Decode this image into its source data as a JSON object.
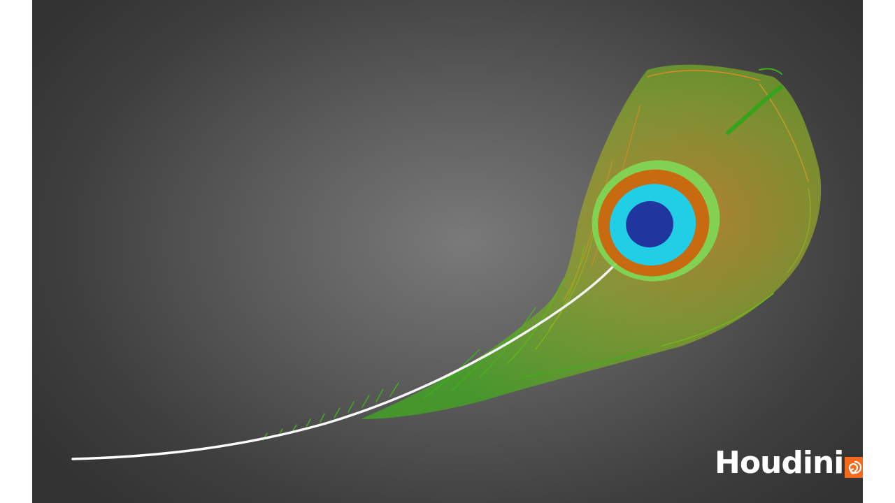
{
  "viewport": {
    "background_center": "#7a7a7a",
    "background_edge": "#333333"
  },
  "feather": {
    "shaft_color": "#ffffff",
    "barb_colors": [
      "#3fae1c",
      "#6fb81e",
      "#c48a2a",
      "#d98a2a"
    ],
    "eye_colors": {
      "outer_green": "#7ed957",
      "bronze_ring": "#c76a10",
      "cyan_ring": "#22cde6",
      "pupil": "#20359e"
    }
  },
  "brand": {
    "wordmark": "Houdini",
    "mark_icon": "houdini-spiral-icon",
    "mark_color": "#f26b1d"
  }
}
